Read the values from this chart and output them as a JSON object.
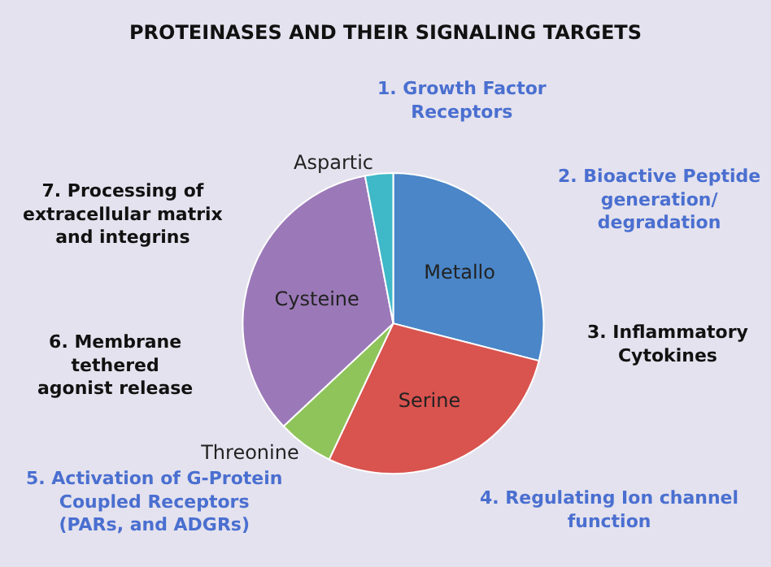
{
  "chart_data": {
    "type": "pie",
    "title": "PROTEINASES AND THEIR SIGNALING TARGETS",
    "categories": [
      "Metallo",
      "Serine",
      "Threonine",
      "Cysteine",
      "Aspartic"
    ],
    "values": [
      29,
      28,
      6,
      34,
      3
    ],
    "colors": [
      "#4a86c8",
      "#d9534f",
      "#8fc45a",
      "#9b79b8",
      "#3fb8c8"
    ],
    "legend": false,
    "annotations": [
      "1. Growth Factor\nReceptors",
      "2. Bioactive Peptide\ngeneration/\ndegradation",
      "3. Inflammatory\nCytokines",
      "4. Regulating Ion channel\nfunction",
      "5. Activation of G-Protein\nCoupled Receptors\n(PARs, and ADGRs)",
      "6. Membrane\ntethered\nagonist release",
      "7. Processing of\nextracellular matrix\nand integrins"
    ]
  }
}
